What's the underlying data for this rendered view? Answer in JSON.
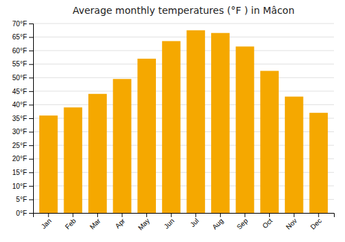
{
  "chart_data": {
    "type": "bar",
    "title": "Average monthly temperatures (°F ) in Mâcon",
    "categories": [
      "Jan",
      "Feb",
      "Mar",
      "Apr",
      "May",
      "Jun",
      "Jul",
      "Aug",
      "Sep",
      "Oct",
      "Nov",
      "Dec"
    ],
    "values": [
      36,
      39,
      44,
      49.5,
      57,
      63.5,
      67.5,
      66.5,
      61.5,
      52.5,
      43,
      37
    ],
    "color": "#F5A800",
    "ylim": [
      0,
      70
    ],
    "yticks": [
      {
        "value": 0,
        "label": "0°F"
      },
      {
        "value": 5,
        "label": "5°F"
      },
      {
        "value": 10,
        "label": "10°F"
      },
      {
        "value": 15,
        "label": "15°F"
      },
      {
        "value": 20,
        "label": "20°F"
      },
      {
        "value": 25,
        "label": "25°F"
      },
      {
        "value": 30,
        "label": "30°F"
      },
      {
        "value": 35,
        "label": "35°F"
      },
      {
        "value": 40,
        "label": "40°F"
      },
      {
        "value": 45,
        "label": "45°F"
      },
      {
        "value": 50,
        "label": "50°F"
      },
      {
        "value": 55,
        "label": "55°F"
      },
      {
        "value": 60,
        "label": "60°F"
      },
      {
        "value": 65,
        "label": "65°F"
      },
      {
        "value": 70,
        "label": "70°F"
      }
    ],
    "grid": true
  }
}
